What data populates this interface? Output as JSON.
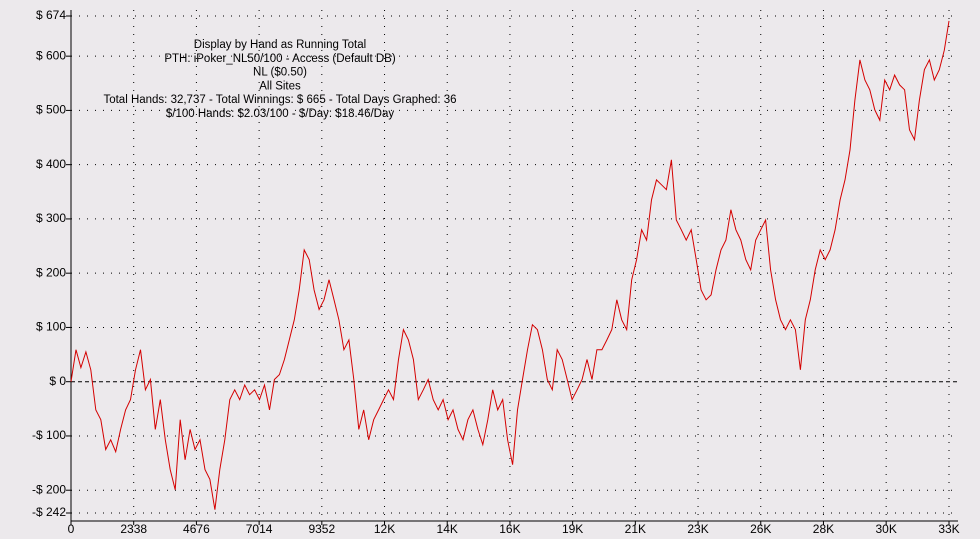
{
  "chart_data": {
    "type": "line",
    "annotations": [
      "Display by Hand as Running Total",
      "PTH: iPoker_NL50/100 - Access (Default DB)",
      "NL ($0.50)",
      "All Sites",
      "Total Hands: 32,737 - Total Winnings: $ 665 - Total Days Graphed: 36",
      "$/100 Hands: $2.03/100 - $/Day: $18.46/Day"
    ],
    "color": "#d40000",
    "grid": true,
    "xlim": [
      0,
      32737
    ],
    "ylim": [
      -242,
      674
    ],
    "xticks": [
      0,
      2338,
      4676,
      7014,
      9352,
      {
        "value": 11690,
        "label": "12K"
      },
      {
        "value": 14028,
        "label": "14K"
      },
      {
        "value": 16366,
        "label": "16K"
      },
      {
        "value": 18704,
        "label": "19K"
      },
      {
        "value": 21042,
        "label": "21K"
      },
      {
        "value": 23380,
        "label": "23K"
      },
      {
        "value": 25718,
        "label": "26K"
      },
      {
        "value": 28056,
        "label": "28K"
      },
      {
        "value": 30394,
        "label": "30K"
      },
      {
        "value": 32737,
        "label": "33K"
      }
    ],
    "yticks": [
      {
        "value": 674,
        "label": "$ 674"
      },
      {
        "value": 600,
        "label": "$ 600"
      },
      {
        "value": 500,
        "label": "$ 500"
      },
      {
        "value": 400,
        "label": "$ 400"
      },
      {
        "value": 300,
        "label": "$ 300"
      },
      {
        "value": 200,
        "label": "$ 200"
      },
      {
        "value": 100,
        "label": "$ 100"
      },
      {
        "value": 0,
        "label": "$ 0"
      },
      {
        "value": -100,
        "label": "-$ 100"
      },
      {
        "value": -200,
        "label": "-$ 200"
      },
      {
        "value": -242,
        "label": "-$ 242"
      }
    ],
    "x": [
      0,
      185,
      370,
      555,
      740,
      925,
      1110,
      1295,
      1480,
      1665,
      1850,
      2035,
      2220,
      2405,
      2590,
      2775,
      2960,
      3145,
      3330,
      3515,
      3700,
      3885,
      4070,
      4255,
      4440,
      4625,
      4810,
      4995,
      5180,
      5365,
      5550,
      5735,
      5920,
      6105,
      6290,
      6475,
      6660,
      6845,
      7030,
      7215,
      7400,
      7585,
      7770,
      7955,
      8140,
      8325,
      8510,
      8695,
      8880,
      9065,
      9250,
      9435,
      9620,
      9805,
      9990,
      10175,
      10360,
      10545,
      10730,
      10915,
      11100,
      11285,
      11470,
      11655,
      11840,
      12025,
      12210,
      12395,
      12580,
      12765,
      12950,
      13135,
      13320,
      13505,
      13690,
      13875,
      14060,
      14245,
      14430,
      14615,
      14800,
      14985,
      15170,
      15355,
      15540,
      15725,
      15910,
      16095,
      16280,
      16465,
      16650,
      16835,
      17020,
      17205,
      17390,
      17575,
      17760,
      17945,
      18130,
      18315,
      18500,
      18685,
      18870,
      19055,
      19240,
      19425,
      19610,
      19795,
      19980,
      20165,
      20350,
      20535,
      20720,
      20905,
      21090,
      21275,
      21460,
      21645,
      21830,
      22015,
      22200,
      22385,
      22570,
      22755,
      22940,
      23125,
      23310,
      23495,
      23680,
      23865,
      24050,
      24235,
      24420,
      24605,
      24790,
      24975,
      25160,
      25345,
      25530,
      25715,
      25900,
      26085,
      26270,
      26455,
      26640,
      26825,
      27010,
      27195,
      27380,
      27565,
      27750,
      27935,
      28120,
      28305,
      28490,
      28675,
      28860,
      29045,
      29230,
      29415,
      29600,
      29785,
      29970,
      30155,
      30340,
      30525,
      30710,
      30895,
      31080,
      31265,
      31450,
      31635,
      31820,
      32005,
      32190,
      32375,
      32560,
      32737
    ],
    "values": [
      0,
      59,
      26,
      55,
      22,
      -52,
      -70,
      -125,
      -107,
      -129,
      -88,
      -52,
      -33,
      22,
      59,
      -15,
      4,
      -88,
      -33,
      -107,
      -162,
      -199,
      -70,
      -144,
      -88,
      -125,
      -107,
      -162,
      -180,
      -236,
      -162,
      -107,
      -33,
      -15,
      -33,
      -6,
      -24,
      -15,
      -33,
      -6,
      -52,
      4,
      13,
      41,
      77,
      114,
      169,
      243,
      225,
      169,
      133,
      151,
      188,
      151,
      114,
      59,
      77,
      4,
      -88,
      -52,
      -107,
      -70,
      -52,
      -33,
      -15,
      -33,
      41,
      96,
      77,
      41,
      -33,
      -15,
      4,
      -33,
      -52,
      -33,
      -70,
      -52,
      -88,
      -107,
      -70,
      -52,
      -88,
      -116,
      -70,
      -15,
      -52,
      -33,
      -107,
      -153,
      -52,
      4,
      59,
      105,
      96,
      59,
      4,
      -15,
      59,
      41,
      4,
      -33,
      -15,
      4,
      41,
      4,
      59,
      59,
      77,
      96,
      151,
      114,
      96,
      188,
      225,
      280,
      261,
      335,
      372,
      363,
      354,
      409,
      298,
      280,
      261,
      280,
      225,
      169,
      151,
      160,
      206,
      243,
      261,
      317,
      280,
      261,
      225,
      206,
      261,
      280,
      298,
      206,
      151,
      114,
      96,
      114,
      96,
      22,
      114,
      151,
      206,
      243,
      225,
      243,
      280,
      335,
      372,
      427,
      519,
      593,
      556,
      538,
      501,
      482,
      556,
      538,
      565,
      547,
      538,
      464,
      446,
      519,
      575,
      593,
      556,
      575,
      611,
      665
    ]
  }
}
